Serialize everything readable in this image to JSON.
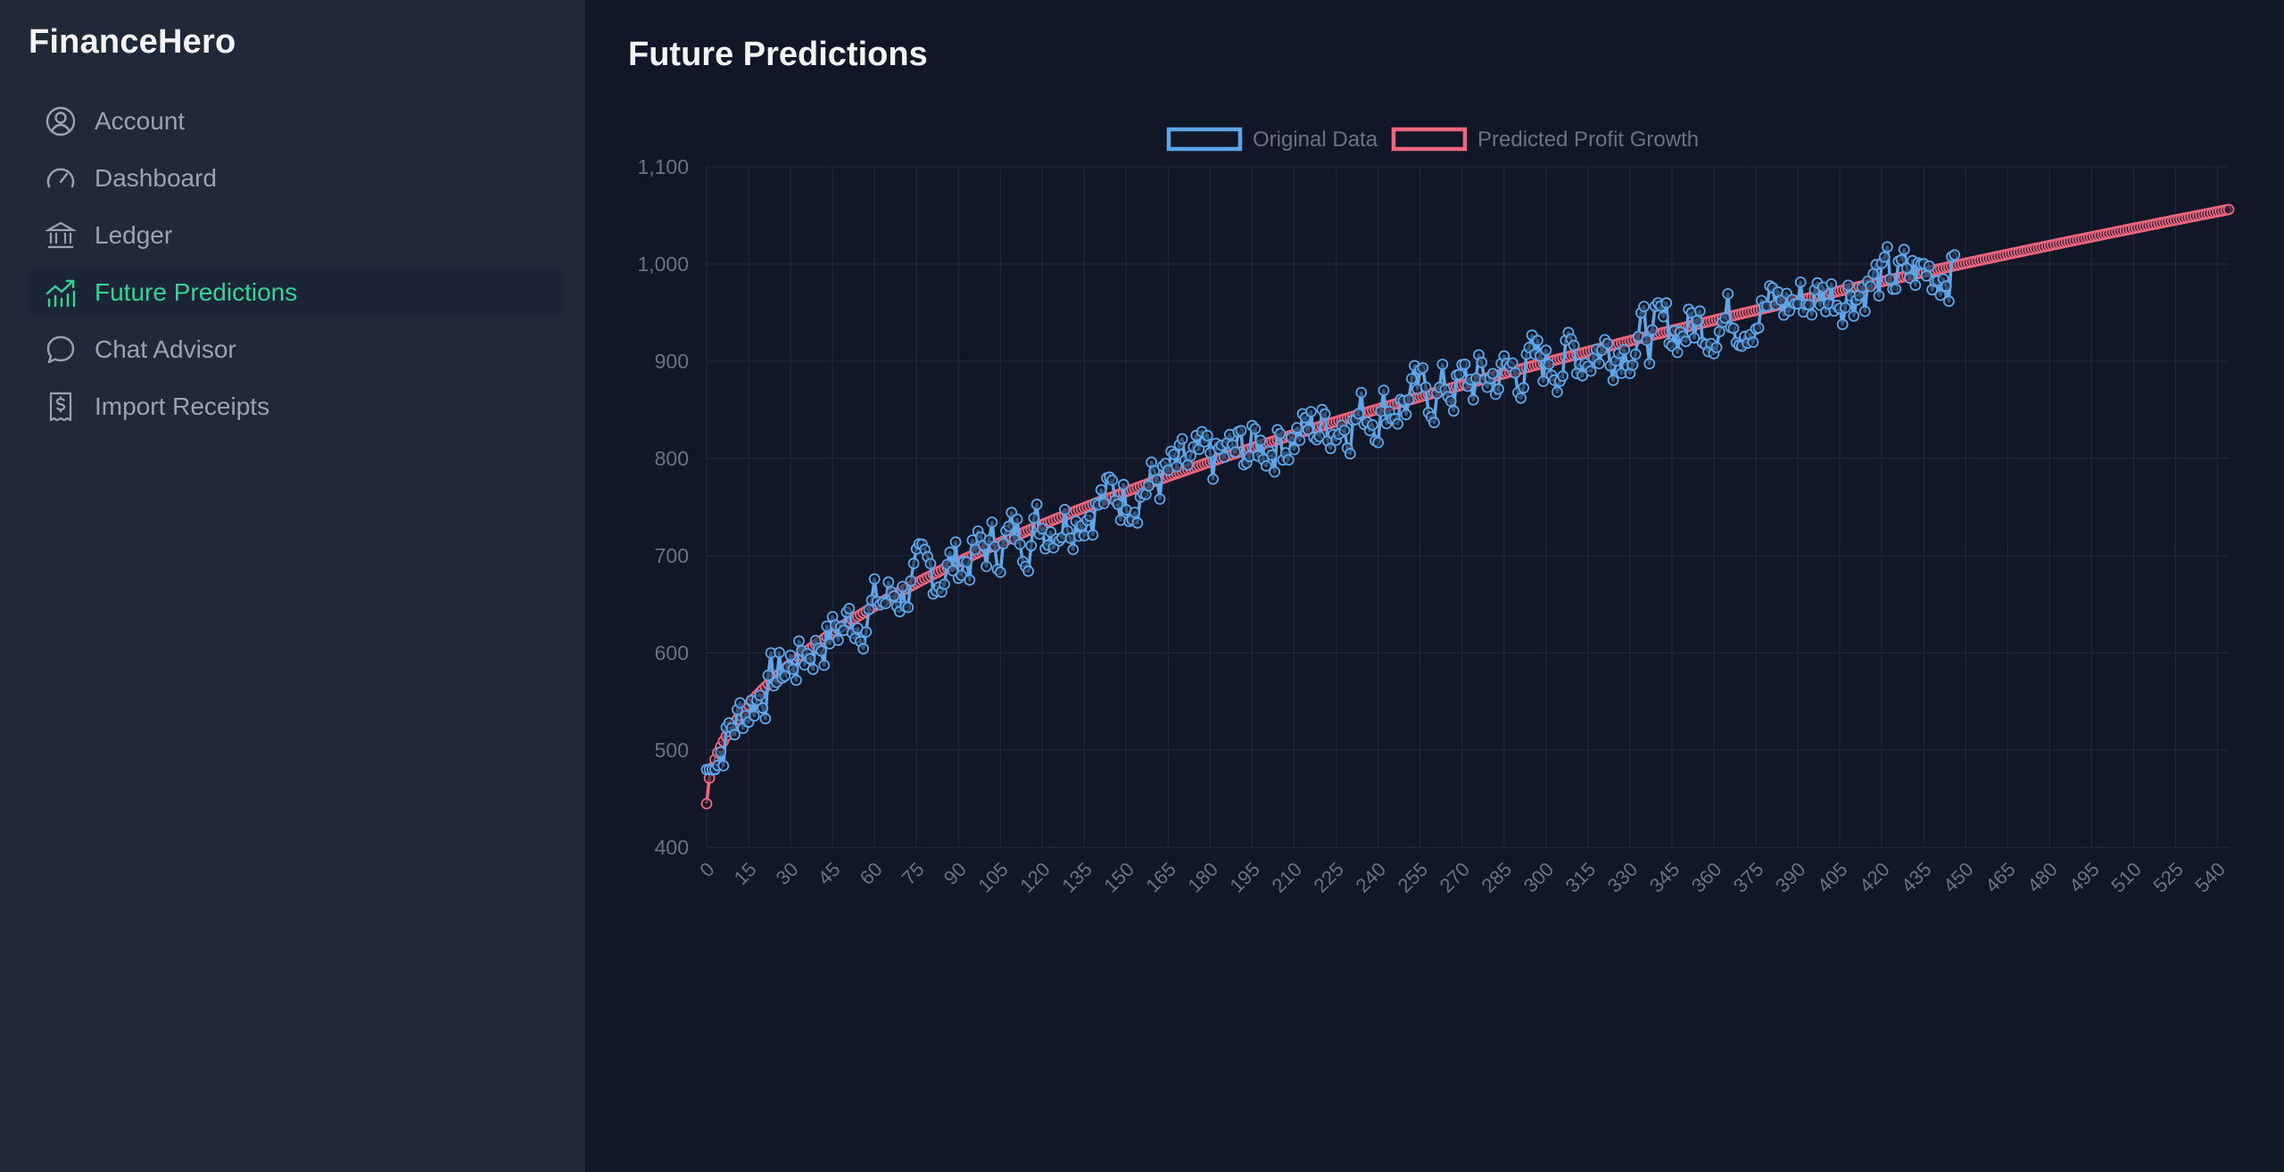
{
  "app": {
    "title": "FinanceHero"
  },
  "sidebar": {
    "items": [
      {
        "label": "Account",
        "icon": "user-circle-icon",
        "active": false
      },
      {
        "label": "Dashboard",
        "icon": "gauge-icon",
        "active": false
      },
      {
        "label": "Ledger",
        "icon": "bank-icon",
        "active": false
      },
      {
        "label": "Future Predictions",
        "icon": "trending-chart-icon",
        "active": true
      },
      {
        "label": "Chat Advisor",
        "icon": "chat-bubble-icon",
        "active": false
      },
      {
        "label": "Import Receipts",
        "icon": "receipt-dollar-icon",
        "active": false
      }
    ]
  },
  "main": {
    "title": "Future Predictions"
  },
  "colors": {
    "original": "#60a5e8",
    "predicted": "#f0667f",
    "accent": "#34d399",
    "grid": "#1e2535",
    "tick": "#6b7280"
  },
  "chart_data": {
    "type": "line",
    "legend": {
      "placement": "top-center",
      "entries": [
        "Original Data",
        "Predicted Profit Growth"
      ]
    },
    "x_range": [
      0,
      544
    ],
    "y_range": [
      400,
      1100
    ],
    "y_ticks": [
      "400",
      "500",
      "600",
      "700",
      "800",
      "900",
      "1,000",
      "1,100"
    ],
    "x_ticks": [
      "0",
      "15",
      "30",
      "45",
      "60",
      "75",
      "90",
      "105",
      "120",
      "135",
      "150",
      "165",
      "180",
      "195",
      "210",
      "225",
      "240",
      "255",
      "270",
      "285",
      "300",
      "315",
      "330",
      "345",
      "360",
      "375",
      "390",
      "405",
      "420",
      "435",
      "450",
      "465",
      "480",
      "495",
      "510",
      "525",
      "540"
    ],
    "grid": true,
    "series": [
      {
        "name": "Original Data",
        "x_start": 0,
        "x_step": 1,
        "count": 447,
        "trend_curve": "approx. 445 + 30 * x^0.5",
        "noise_amplitude": 35,
        "anchor_points": [
          [
            0,
            500
          ],
          [
            8,
            545
          ],
          [
            30,
            600
          ],
          [
            60,
            650
          ],
          [
            90,
            690
          ],
          [
            135,
            760
          ],
          [
            180,
            800
          ],
          [
            225,
            850
          ],
          [
            270,
            880
          ],
          [
            315,
            930
          ],
          [
            360,
            960
          ],
          [
            405,
            985
          ],
          [
            433,
            1030
          ],
          [
            446,
            965
          ]
        ]
      },
      {
        "name": "Predicted Profit Growth",
        "x_start": 0,
        "x_step": 1,
        "count": 545,
        "formula": "445 + 26.2 * x^0.5",
        "anchor_points": [
          [
            0,
            445
          ],
          [
            1,
            471
          ],
          [
            15,
            546
          ],
          [
            60,
            648
          ],
          [
            135,
            749
          ],
          [
            225,
            838
          ],
          [
            315,
            910
          ],
          [
            405,
            972
          ],
          [
            450,
            1001
          ],
          [
            540,
            1054
          ]
        ]
      }
    ]
  }
}
